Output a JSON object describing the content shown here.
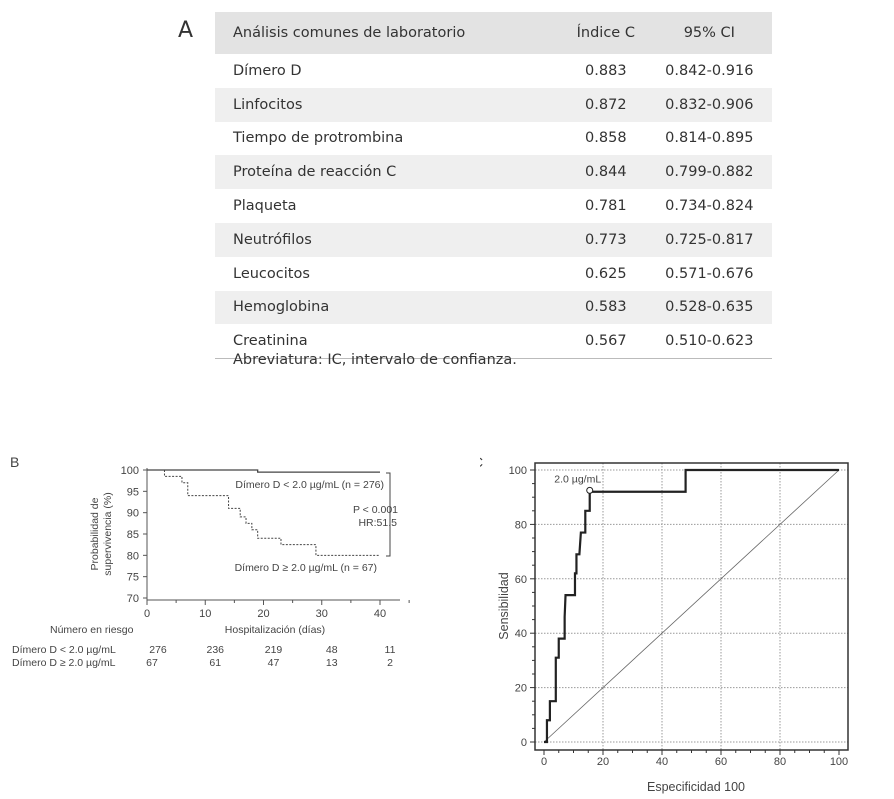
{
  "panel_a": {
    "label": "A",
    "headers": [
      "Análisis comunes de laboratorio",
      "Índice C",
      "95% CI"
    ],
    "rows": [
      [
        "Dímero D",
        "0.883",
        "0.842-0.916"
      ],
      [
        "Linfocitos",
        "0.872",
        "0.832-0.906"
      ],
      [
        "Tiempo de protrombina",
        "0.858",
        "0.814-0.895"
      ],
      [
        "Proteína de reacción C",
        "0.844",
        "0.799-0.882"
      ],
      [
        "Plaqueta",
        "0.781",
        "0.734-0.824"
      ],
      [
        "Neutrófilos",
        "0.773",
        "0.725-0.817"
      ],
      [
        "Leucocitos",
        "0.625",
        "0.571-0.676"
      ],
      [
        "Hemoglobina",
        "0.583",
        "0.528-0.635"
      ],
      [
        "Creatinina",
        "0.567",
        "0.510-0.623"
      ]
    ],
    "footnote": "Abreviatura: IC, intervalo de confianza."
  },
  "chart_data": [
    {
      "panel": "B",
      "type": "line",
      "xlabel": "Hospitalización (días)",
      "ylabel": [
        "Probabilidad de",
        "supervivencia (%)"
      ],
      "xlim": [
        0,
        40
      ],
      "ylim": [
        70,
        100
      ],
      "xticks": [
        0,
        10,
        20,
        30,
        40
      ],
      "yticks": [
        70,
        75,
        80,
        85,
        90,
        95,
        100
      ],
      "series": [
        {
          "name": "Dímero D < 2.0 µg/mL (n = 276)",
          "style": "solid",
          "steps": [
            [
              0,
              100
            ],
            [
              19,
              99.5
            ],
            [
              40,
              99.5
            ]
          ]
        },
        {
          "name": "Dímero D ≥ 2.0 µg/mL (n = 67)",
          "style": "dashed",
          "steps": [
            [
              0,
              100
            ],
            [
              3,
              98.5
            ],
            [
              6,
              97
            ],
            [
              7,
              94
            ],
            [
              14,
              91
            ],
            [
              16,
              89
            ],
            [
              17,
              87.5
            ],
            [
              18,
              86
            ],
            [
              19,
              84
            ],
            [
              23,
              82.5
            ],
            [
              29,
              80
            ],
            [
              40,
              80
            ]
          ]
        }
      ],
      "annotation": [
        "P  < 0.001",
        "HR:51.5"
      ],
      "risk_table": {
        "title": "Número en riesgo",
        "rows": [
          {
            "label": "Dímero D < 2.0 µg/mL",
            "values": [
              "276",
              "236",
              "219",
              "48",
              "11"
            ]
          },
          {
            "label": "Dímero D ≥ 2.0 µg/mL",
            "values": [
              "67",
              "61",
              "47",
              "13",
              "2"
            ]
          }
        ]
      }
    },
    {
      "panel": "C",
      "type": "line",
      "xlabel": "Especificidad 100",
      "ylabel": "Sensibilidad",
      "xlim": [
        0,
        100
      ],
      "ylim": [
        0,
        100
      ],
      "xticks": [
        0,
        20,
        40,
        60,
        80,
        100
      ],
      "yticks": [
        0,
        20,
        40,
        60,
        80,
        100
      ],
      "grid": true,
      "roc": [
        [
          0,
          0
        ],
        [
          1,
          0
        ],
        [
          1,
          8
        ],
        [
          2,
          8
        ],
        [
          2,
          15
        ],
        [
          4,
          15
        ],
        [
          4,
          31
        ],
        [
          5,
          31
        ],
        [
          5,
          38
        ],
        [
          7,
          38
        ],
        [
          7,
          46
        ],
        [
          7.3,
          54
        ],
        [
          10.5,
          54
        ],
        [
          10.5,
          62
        ],
        [
          11,
          62
        ],
        [
          11,
          69
        ],
        [
          12,
          69
        ],
        [
          12.5,
          77
        ],
        [
          14,
          77
        ],
        [
          14,
          85
        ],
        [
          15.5,
          85
        ],
        [
          15.5,
          92
        ],
        [
          48,
          92
        ],
        [
          48,
          100
        ],
        [
          100,
          100
        ]
      ],
      "cutoff": {
        "label": "2.0 µg/mL",
        "x": 15.5,
        "y": 92.5
      },
      "reference_line": [
        [
          0,
          0
        ],
        [
          100,
          100
        ]
      ]
    }
  ]
}
